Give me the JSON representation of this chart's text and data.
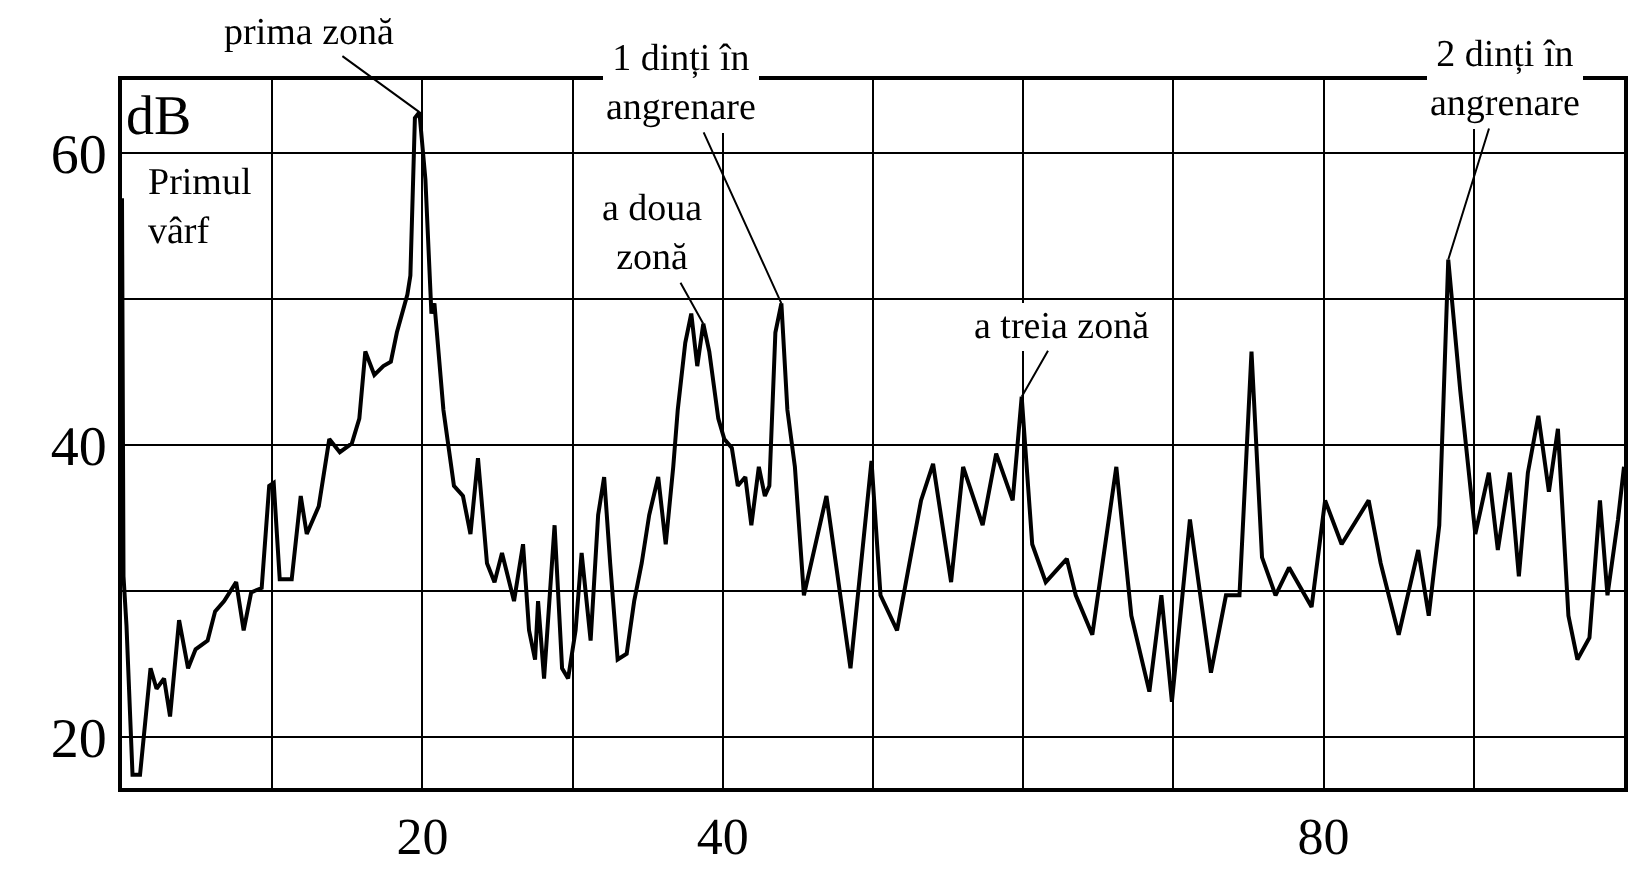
{
  "chart_data": {
    "type": "line",
    "ylabel": "dB",
    "xlim": [
      0,
      100
    ],
    "ylim": [
      16.5,
      65
    ],
    "xticks": [
      {
        "value": 10,
        "label": null
      },
      {
        "value": 20,
        "label": "20"
      },
      {
        "value": 30,
        "label": null
      },
      {
        "value": 40,
        "label": "40"
      },
      {
        "value": 50,
        "label": null
      },
      {
        "value": 60,
        "label": null
      },
      {
        "value": 70,
        "label": null
      },
      80,
      {
        "value": 90,
        "label": null
      }
    ],
    "yticks": [
      20,
      {
        "value": 30,
        "label": null
      },
      40,
      {
        "value": 50,
        "label": null
      },
      60
    ],
    "grid": true,
    "legend": false,
    "marker": "none",
    "line_style": "solid",
    "x": [
      0,
      0.1,
      0.3,
      0.7,
      1.2,
      1.9,
      2.3,
      2.8,
      3.2,
      3.8,
      4.4,
      4.9,
      5.7,
      6.2,
      6.8,
      7.6,
      8.1,
      8.6,
      9.3,
      9.8,
      10.1,
      10.5,
      11.3,
      11.9,
      12.3,
      13.1,
      13.8,
      14.5,
      15.3,
      15.8,
      16.2,
      16.8,
      17.4,
      17.9,
      18.3,
      19.0,
      19.2,
      19.5,
      19.8,
      20.2,
      20.6,
      20.8,
      21.4,
      22.1,
      22.7,
      23.2,
      23.7,
      24.3,
      24.8,
      25.3,
      26.1,
      26.7,
      27.1,
      27.5,
      27.7,
      28.1,
      28.8,
      29.3,
      29.7,
      30.2,
      30.6,
      31.2,
      31.7,
      32.1,
      32.5,
      33.0,
      33.6,
      34.1,
      34.6,
      35.1,
      35.7,
      36.2,
      36.7,
      37.0,
      37.5,
      37.9,
      38.3,
      38.7,
      39.1,
      39.7,
      40.1,
      40.6,
      41.0,
      41.5,
      41.9,
      42.4,
      42.8,
      43.1,
      43.5,
      43.9,
      44.3,
      44.8,
      45.4,
      46.9,
      48.5,
      49.9,
      50.5,
      51.6,
      53.2,
      54.0,
      55.2,
      56.0,
      57.3,
      58.2,
      59.3,
      59.9,
      60.6,
      61.5,
      62.9,
      63.5,
      64.6,
      66.2,
      67.2,
      68.4,
      69.2,
      69.9,
      71.1,
      72.5,
      73.5,
      74.4,
      75.2,
      75.9,
      76.8,
      77.7,
      79.2,
      80.1,
      81.2,
      83.0,
      83.8,
      85.0,
      86.3,
      87.0,
      87.7,
      88.3,
      89.1,
      90.1,
      91.0,
      91.6,
      92.4,
      93.0,
      93.6,
      94.3,
      95.0,
      95.6,
      96.3,
      96.9,
      97.7,
      98.4,
      98.9,
      99.6,
      100
    ],
    "series": [
      {
        "color": "#000000",
        "values": [
          56.9,
          31.0,
          27.6,
          17.4,
          17.4,
          24.7,
          23.3,
          24.0,
          21.4,
          28.0,
          24.7,
          26.0,
          26.6,
          28.6,
          29.3,
          30.6,
          27.3,
          29.9,
          30.2,
          37.2,
          37.4,
          30.8,
          30.8,
          36.5,
          33.9,
          35.8,
          40.4,
          39.5,
          40.1,
          41.8,
          46.4,
          44.8,
          45.4,
          45.7,
          47.7,
          50.3,
          51.6,
          62.4,
          62.8,
          58.2,
          49.0,
          49.7,
          42.4,
          37.2,
          36.5,
          33.9,
          39.1,
          31.9,
          30.6,
          32.6,
          29.3,
          33.2,
          27.3,
          25.3,
          29.3,
          24.0,
          34.5,
          24.7,
          24.0,
          27.3,
          32.6,
          26.6,
          35.2,
          37.8,
          31.9,
          25.3,
          25.7,
          29.3,
          31.9,
          35.2,
          37.8,
          33.2,
          38.5,
          42.4,
          47.0,
          49.0,
          45.4,
          48.3,
          46.4,
          41.8,
          40.4,
          39.8,
          37.2,
          37.8,
          34.5,
          38.5,
          36.5,
          37.2,
          47.7,
          49.7,
          42.4,
          38.5,
          29.7,
          36.5,
          24.7,
          38.9,
          29.7,
          27.3,
          36.2,
          38.7,
          30.6,
          38.5,
          34.5,
          39.4,
          36.2,
          43.3,
          33.2,
          30.6,
          32.2,
          29.7,
          27.0,
          38.5,
          28.3,
          23.1,
          29.7,
          22.4,
          34.9,
          24.4,
          29.7,
          29.7,
          46.4,
          32.3,
          29.7,
          31.6,
          28.9,
          36.2,
          33.2,
          36.2,
          31.9,
          27.0,
          32.8,
          28.3,
          34.5,
          52.7,
          43.7,
          33.9,
          38.1,
          32.8,
          38.1,
          31.0,
          38.1,
          42.0,
          36.8,
          41.1,
          28.3,
          25.3,
          26.8,
          36.2,
          29.7,
          34.9,
          38.5
        ]
      }
    ],
    "annotations": [
      {
        "text": "prima zonă",
        "x": 19.8,
        "y": 62.8
      },
      {
        "text": "Primul\nvârf",
        "x": 0,
        "y": 56.9
      },
      {
        "text": "1 dinți în\nangrenare",
        "x": 43.9,
        "y": 49.7
      },
      {
        "text": "a doua\nzonă",
        "x": 38.7,
        "y": 48.3
      },
      {
        "text": "a treia zonă",
        "x": 59.9,
        "y": 43.3
      },
      {
        "text": "2 dinți în\nangrenare",
        "x": 88.3,
        "y": 52.7
      }
    ]
  }
}
